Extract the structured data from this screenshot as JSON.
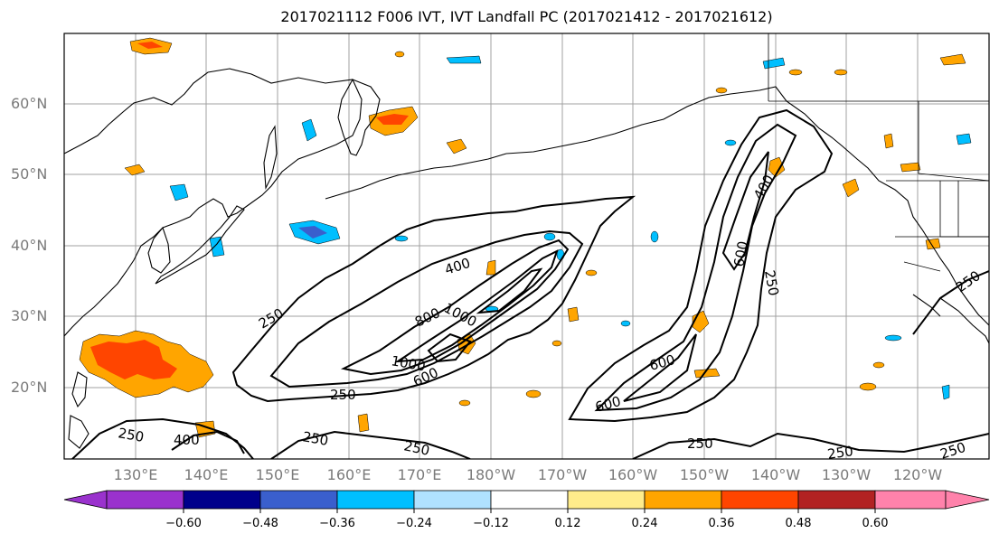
{
  "title": "2017021112 F006 IVT, IVT Landfall PC (2017021412 - 2017021612)",
  "lat_labels": [
    "60°N",
    "50°N",
    "40°N",
    "30°N",
    "20°N"
  ],
  "lon_labels": [
    "130°E",
    "140°E",
    "150°E",
    "160°E",
    "170°E",
    "180°W",
    "170°W",
    "160°W",
    "150°W",
    "140°W",
    "130°W",
    "120°W"
  ],
  "contour_labels": [
    "250",
    "250",
    "250",
    "250",
    "250",
    "250",
    "250",
    "250",
    "400",
    "400",
    "400",
    "600",
    "600",
    "600",
    "600",
    "800",
    "1000",
    "1000"
  ],
  "colorbar": {
    "ticks": [
      "−0.60",
      "−0.48",
      "−0.36",
      "−0.24",
      "−0.12",
      "0.12",
      "0.24",
      "0.36",
      "0.48",
      "0.60"
    ],
    "colors": [
      "#9a32cd",
      "#00008b",
      "#3a5fcd",
      "#00bfff",
      "#b0e2ff",
      "#ffffff",
      "#ffec8b",
      "#ffa500",
      "#ff4500",
      "#b22222",
      "#ff82ab"
    ]
  },
  "colors": {
    "grid": "#a0a0a0",
    "coast": "#000000",
    "contour": "#000000"
  }
}
